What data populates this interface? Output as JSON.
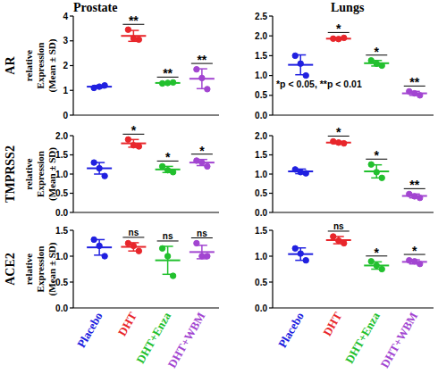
{
  "chart_data": [
    {
      "type": "scatter",
      "title": "Prostate",
      "ylabel": "AR",
      "ylabel_detail": [
        "relative",
        "Expression",
        "(Mean ± SD)"
      ],
      "categories": [
        "Placebo",
        "DHT",
        "DHT+Enza",
        "DHT+WBM"
      ],
      "colors": [
        "#2020e0",
        "#e8262b",
        "#22c02e",
        "#a245d1"
      ],
      "marker": "circle",
      "points": [
        [
          1.1,
          1.15,
          1.2
        ],
        [
          3.45,
          3.1,
          3.05
        ],
        [
          1.28,
          1.3,
          1.32
        ],
        [
          1.85,
          1.5,
          1.05
        ]
      ],
      "mean": [
        1.15,
        3.2,
        1.3,
        1.47
      ],
      "sd": [
        0.05,
        0.22,
        0.02,
        0.4
      ],
      "significance": [
        null,
        "**",
        "**",
        "**"
      ],
      "ylim": [
        0,
        4
      ],
      "yticks": [
        0,
        1,
        2,
        3,
        4
      ],
      "tick_labels": "y"
    },
    {
      "type": "scatter",
      "title": "Lungs",
      "categories": [
        "Placebo",
        "DHT",
        "DHT+Enza",
        "DHT+WBM"
      ],
      "colors": [
        "#2020e0",
        "#e8262b",
        "#22c02e",
        "#a245d1"
      ],
      "marker": "circle",
      "points": [
        [
          1.5,
          1.3,
          1.0
        ],
        [
          1.93,
          1.92,
          1.95
        ],
        [
          1.38,
          1.3,
          1.25
        ],
        [
          0.6,
          0.55,
          0.5
        ]
      ],
      "mean": [
        1.27,
        1.93,
        1.31,
        0.55
      ],
      "sd": [
        0.25,
        0.02,
        0.07,
        0.05
      ],
      "significance": [
        null,
        "*",
        "*",
        "**"
      ],
      "annotation": "*p < 0.05, **p < 0.01",
      "ylim": [
        0,
        2.5
      ],
      "yticks": [
        {
          "value": 0,
          "label": "0.0"
        },
        0.5,
        {
          "value": 1,
          "label": "1.0"
        },
        1.5,
        {
          "value": 2,
          "label": "2.0"
        },
        2.5
      ],
      "tick_labels": "y"
    },
    {
      "type": "scatter",
      "ylabel": "TMPRSS2",
      "ylabel_detail": [
        "relative",
        "Expression",
        "(Mean ± SD)"
      ],
      "categories": [
        "Placebo",
        "DHT",
        "DHT+Enza",
        "DHT+WBM"
      ],
      "colors": [
        "#2020e0",
        "#e8262b",
        "#22c02e",
        "#a245d1"
      ],
      "marker": "circle",
      "points": [
        [
          1.3,
          1.15,
          0.95
        ],
        [
          1.9,
          1.75,
          1.72
        ],
        [
          1.2,
          1.1,
          1.05
        ],
        [
          1.35,
          1.3,
          1.2
        ]
      ],
      "mean": [
        1.15,
        1.8,
        1.12,
        1.3
      ],
      "sd": [
        0.15,
        0.1,
        0.08,
        0.08
      ],
      "significance": [
        null,
        "*",
        "*",
        "*"
      ],
      "ylim": [
        0,
        2
      ],
      "yticks": [
        {
          "value": 0,
          "label": "0.0"
        },
        0.5,
        {
          "value": 1,
          "label": "1.0"
        },
        1.5,
        {
          "value": 2,
          "label": "2.0"
        }
      ],
      "tick_labels": "y"
    },
    {
      "type": "scatter",
      "categories": [
        "Placebo",
        "DHT",
        "DHT+Enza",
        "DHT+WBM"
      ],
      "colors": [
        "#2020e0",
        "#e8262b",
        "#22c02e",
        "#a245d1"
      ],
      "marker": "circle",
      "points": [
        [
          1.12,
          1.05,
          1.02
        ],
        [
          1.85,
          1.82,
          1.8
        ],
        [
          1.25,
          1.05,
          0.9
        ],
        [
          0.48,
          0.42,
          0.38
        ]
      ],
      "mean": [
        1.07,
        1.82,
        1.07,
        0.43
      ],
      "sd": [
        0.06,
        0.03,
        0.17,
        0.05
      ],
      "significance": [
        null,
        "*",
        "*",
        "**"
      ],
      "ylim": [
        0,
        2
      ],
      "yticks": [
        {
          "value": 0,
          "label": "0.0"
        },
        0.5,
        {
          "value": 1,
          "label": "1.0"
        },
        1.5,
        {
          "value": 2,
          "label": "2.0"
        }
      ],
      "tick_labels": "y"
    },
    {
      "type": "scatter",
      "ylabel": "ACE2",
      "ylabel_detail": [
        "relative",
        "Expression",
        "(Mean ± SD)"
      ],
      "categories": [
        "Placebo",
        "DHT",
        "DHT+Enza",
        "DHT+WBM"
      ],
      "colors": [
        "#2020e0",
        "#e8262b",
        "#22c02e",
        "#a245d1"
      ],
      "marker": "circle",
      "points": [
        [
          1.32,
          1.2,
          1.0
        ],
        [
          1.25,
          1.2,
          1.1
        ],
        [
          1.15,
          1.0,
          0.62
        ],
        [
          1.25,
          1.0,
          1.0
        ]
      ],
      "mean": [
        1.17,
        1.18,
        0.92,
        1.08
      ],
      "sd": [
        0.15,
        0.08,
        0.27,
        0.13
      ],
      "significance": [
        null,
        "ns",
        "ns",
        "ns"
      ],
      "ylim": [
        0,
        1.5
      ],
      "yticks": [
        {
          "value": 0,
          "label": "0.0"
        },
        0.5,
        {
          "value": 1,
          "label": "1.0"
        },
        1.5
      ]
    },
    {
      "type": "scatter",
      "categories": [
        "Placebo",
        "DHT",
        "DHT+Enza",
        "DHT+WBM"
      ],
      "colors": [
        "#2020e0",
        "#e8262b",
        "#22c02e",
        "#a245d1"
      ],
      "marker": "circle",
      "points": [
        [
          1.15,
          1.05,
          0.92
        ],
        [
          1.38,
          1.3,
          1.25
        ],
        [
          0.9,
          0.82,
          0.75
        ],
        [
          0.92,
          0.9,
          0.85
        ]
      ],
      "mean": [
        1.04,
        1.31,
        0.82,
        0.89
      ],
      "sd": [
        0.12,
        0.07,
        0.07,
        0.04
      ],
      "significance": [
        null,
        "ns",
        "*",
        "*"
      ],
      "ylim": [
        0,
        1.5
      ],
      "yticks": [
        {
          "value": 0,
          "label": "0.0"
        },
        0.5,
        {
          "value": 1,
          "label": "1.0"
        },
        1.5
      ]
    }
  ]
}
